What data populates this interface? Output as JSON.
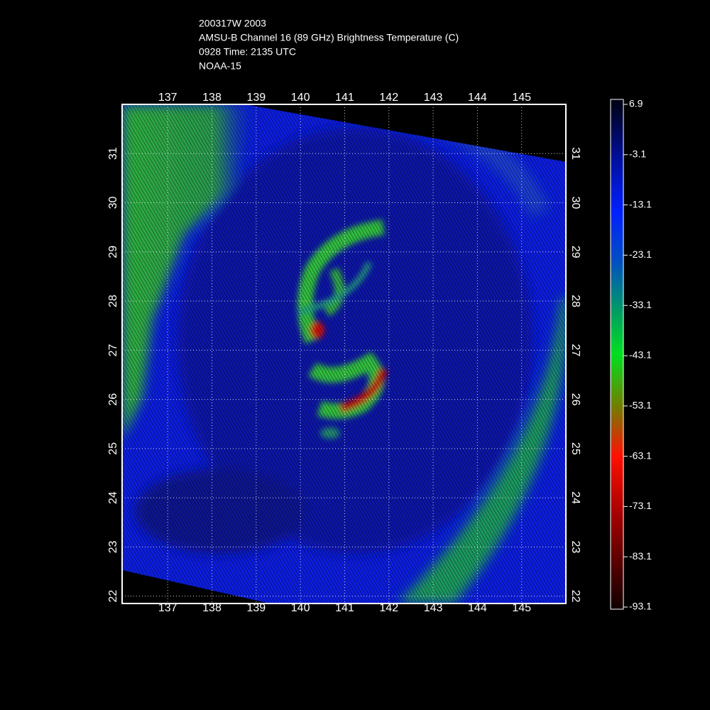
{
  "header": {
    "lines": [
      "200317W 2003",
      "AMSU-B Channel 16 (89 GHz) Brightness Temperature (C)",
      "0928 Time: 2135 UTC",
      "NOAA-15"
    ]
  },
  "map": {
    "xlim": [
      135.97,
      146.0
    ],
    "ylim": [
      21.85,
      32.0
    ],
    "xticks": [
      137,
      138,
      139,
      140,
      141,
      142,
      143,
      144,
      145
    ],
    "yticks": [
      22,
      23,
      24,
      25,
      26,
      27,
      28,
      29,
      30,
      31
    ],
    "grid": true
  },
  "colorbar": {
    "lim": [
      -93.1,
      6.9
    ],
    "ticks": [
      6.9,
      -3.1,
      -13.1,
      -23.1,
      -33.1,
      -43.1,
      -53.1,
      -63.1,
      -73.1,
      -83.1,
      -93.1
    ]
  }
}
